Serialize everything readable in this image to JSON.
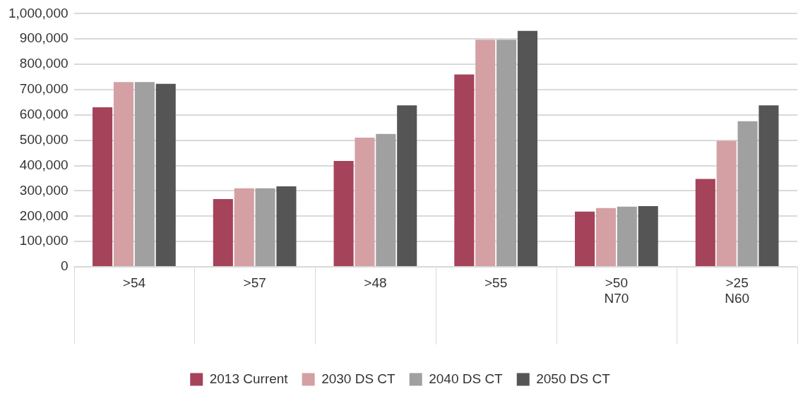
{
  "chart_data": {
    "type": "bar",
    "categories": [
      ">54",
      ">57",
      ">48",
      ">55",
      ">50\nN70",
      ">25\nN60"
    ],
    "series": [
      {
        "name": "2013 Current",
        "color": "#a5435a",
        "values": [
          630000,
          268000,
          418000,
          760000,
          218000,
          347000
        ]
      },
      {
        "name": "2030 DS CT",
        "color": "#d4a0a4",
        "values": [
          730000,
          310000,
          510000,
          897000,
          232000,
          498000
        ]
      },
      {
        "name": "2040 DS CT",
        "color": "#a0a0a0",
        "values": [
          730000,
          310000,
          525000,
          897000,
          238000,
          575000
        ]
      },
      {
        "name": "2050 DS CT",
        "color": "#555555",
        "values": [
          723000,
          318000,
          638000,
          932000,
          240000,
          638000
        ]
      }
    ],
    "ylim": [
      0,
      1000000
    ],
    "yticks": [
      0,
      {
        "value": 100000,
        "label": "100,000"
      },
      {
        "value": 200000,
        "label": "200,000"
      },
      {
        "value": 300000,
        "label": "300,000"
      },
      {
        "value": 400000,
        "label": "400,000"
      },
      {
        "value": 500000,
        "label": "500,000"
      },
      {
        "value": 600000,
        "label": "600,000"
      },
      {
        "value": 700000,
        "label": "700,000"
      },
      {
        "value": 800000,
        "label": "800,000"
      },
      {
        "value": 900000,
        "label": "900,000"
      },
      {
        "value": 1000000,
        "label": "1,000,000"
      }
    ],
    "grid": "y",
    "legend": "bottom"
  }
}
